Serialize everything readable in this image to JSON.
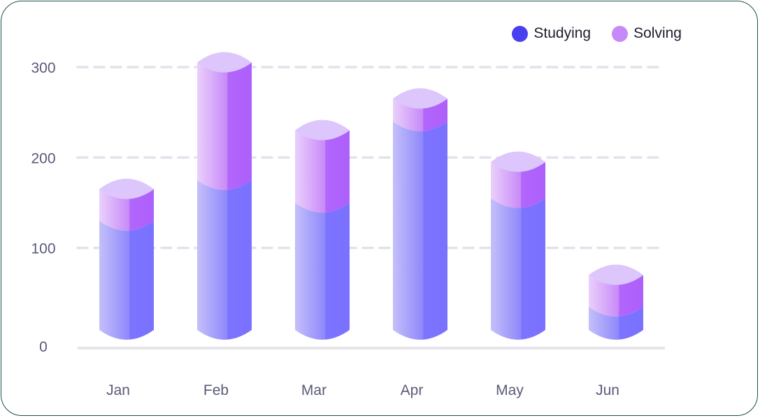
{
  "chart_data": {
    "type": "bar",
    "stacked": true,
    "categories": [
      "Jan",
      "Feb",
      "Mar",
      "Apr",
      "May",
      "Jun"
    ],
    "series": [
      {
        "name": "Studying",
        "values": [
          130,
          175,
          150,
          240,
          155,
          35
        ],
        "color": "#4f46e5"
      },
      {
        "name": "Solving",
        "values": [
          35,
          130,
          80,
          25,
          40,
          35
        ],
        "color": "#c58af7"
      }
    ],
    "yticks": [
      0,
      100,
      200,
      300
    ],
    "ylim": [
      0,
      300
    ],
    "grid": true,
    "legend": "top-right"
  }
}
